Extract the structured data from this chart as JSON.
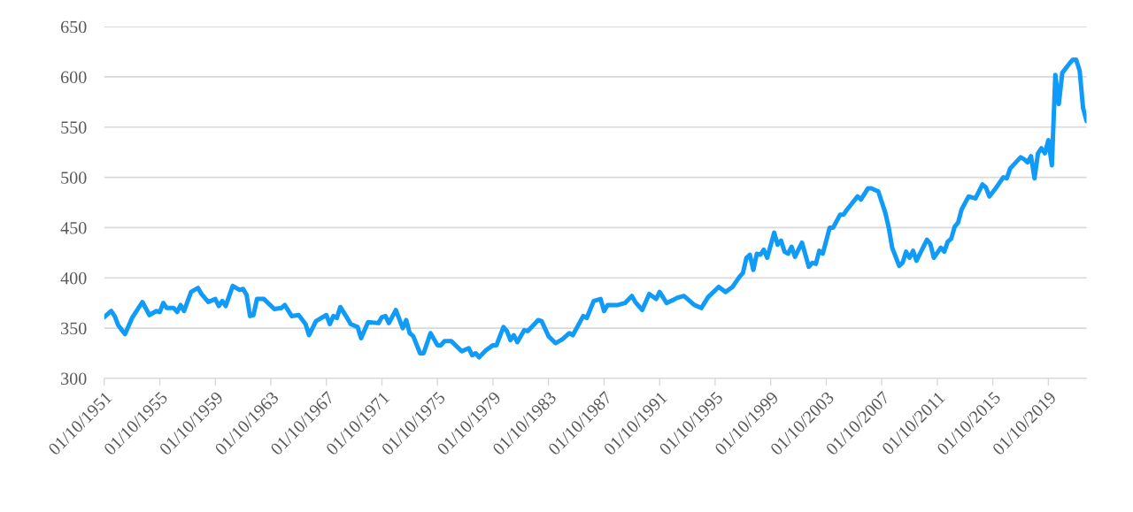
{
  "chart_data": {
    "type": "line",
    "x": [
      "1951-10",
      "1952-04",
      "1952-07",
      "1952-10",
      "1953-04",
      "1953-10",
      "1954-07",
      "1955-01",
      "1955-07",
      "1955-10",
      "1956-01",
      "1956-04",
      "1956-10",
      "1957-01",
      "1957-04",
      "1957-07",
      "1958-01",
      "1958-07",
      "1958-10",
      "1959-04",
      "1959-10",
      "1960-01",
      "1960-04",
      "1960-07",
      "1961-01",
      "1961-07",
      "1961-10",
      "1962-01",
      "1962-04",
      "1962-07",
      "1962-10",
      "1963-04",
      "1964-01",
      "1964-07",
      "1964-10",
      "1965-04",
      "1965-10",
      "1966-04",
      "1966-07",
      "1967-01",
      "1967-10",
      "1968-01",
      "1968-04",
      "1968-07",
      "1968-10",
      "1969-04",
      "1969-07",
      "1970-01",
      "1970-04",
      "1970-10",
      "1971-07",
      "1971-10",
      "1972-01",
      "1972-04",
      "1972-10",
      "1973-04",
      "1973-07",
      "1973-10",
      "1974-01",
      "1974-07",
      "1974-10",
      "1975-04",
      "1975-10",
      "1976-01",
      "1976-04",
      "1976-10",
      "1977-07",
      "1978-01",
      "1978-04",
      "1978-07",
      "1978-10",
      "1979-04",
      "1979-10",
      "1980-01",
      "1980-07",
      "1980-10",
      "1981-01",
      "1981-04",
      "1981-07",
      "1982-01",
      "1982-04",
      "1983-01",
      "1983-04",
      "1983-10",
      "1984-04",
      "1984-10",
      "1985-04",
      "1985-07",
      "1986-04",
      "1986-07",
      "1987-01",
      "1987-07",
      "1987-10",
      "1988-01",
      "1988-10",
      "1989-04",
      "1989-10",
      "1990-01",
      "1990-07",
      "1991-01",
      "1991-07",
      "1991-10",
      "1992-04",
      "1993-01",
      "1993-07",
      "1994-04",
      "1994-10",
      "1995-04",
      "1996-01",
      "1996-07",
      "1997-01",
      "1997-07",
      "1997-10",
      "1998-01",
      "1998-04",
      "1998-07",
      "1998-10",
      "1999-01",
      "1999-04",
      "1999-07",
      "2000-01",
      "2000-04",
      "2000-07",
      "2000-10",
      "2001-01",
      "2001-04",
      "2001-07",
      "2002-01",
      "2002-07",
      "2002-10",
      "2003-01",
      "2003-04",
      "2003-07",
      "2004-01",
      "2004-04",
      "2004-10",
      "2005-01",
      "2005-04",
      "2006-01",
      "2006-04",
      "2006-10",
      "2007-01",
      "2007-07",
      "2008-01",
      "2008-04",
      "2008-07",
      "2009-01",
      "2009-04",
      "2009-07",
      "2009-10",
      "2010-01",
      "2010-04",
      "2011-01",
      "2011-04",
      "2011-07",
      "2012-01",
      "2012-04",
      "2012-07",
      "2012-10",
      "2013-01",
      "2013-04",
      "2013-07",
      "2014-01",
      "2014-07",
      "2015-01",
      "2015-04",
      "2015-07",
      "2016-01",
      "2016-07",
      "2016-10",
      "2017-01",
      "2017-10",
      "2018-01",
      "2018-04",
      "2018-07",
      "2018-10",
      "2019-01",
      "2019-04",
      "2019-07",
      "2019-10",
      "2020-01",
      "2020-04",
      "2020-07",
      "2020-10",
      "2021-04",
      "2021-07",
      "2021-10",
      "2022-01",
      "2022-04",
      "2022-07"
    ],
    "values": [
      361,
      367,
      362,
      353,
      344,
      360,
      376,
      363,
      367,
      366,
      375,
      370,
      370,
      366,
      373,
      367,
      386,
      390,
      384,
      376,
      379,
      372,
      377,
      372,
      392,
      388,
      389,
      383,
      362,
      363,
      379,
      379,
      369,
      370,
      373,
      362,
      363,
      354,
      343,
      357,
      363,
      354,
      362,
      360,
      371,
      360,
      354,
      351,
      340,
      356,
      355,
      361,
      362,
      355,
      368,
      350,
      358,
      345,
      342,
      325,
      325,
      345,
      333,
      333,
      337,
      337,
      327,
      330,
      323,
      325,
      321,
      328,
      333,
      333,
      351,
      347,
      338,
      343,
      336,
      348,
      347,
      358,
      357,
      342,
      335,
      339,
      345,
      343,
      362,
      360,
      377,
      379,
      367,
      373,
      373,
      375,
      382,
      376,
      368,
      384,
      379,
      386,
      375,
      380,
      382,
      373,
      370,
      381,
      391,
      386,
      391,
      401,
      405,
      420,
      423,
      408,
      424,
      423,
      428,
      420,
      445,
      433,
      437,
      426,
      424,
      431,
      421,
      435,
      411,
      415,
      414,
      427,
      424,
      450,
      450,
      463,
      463,
      468,
      481,
      478,
      489,
      489,
      486,
      465,
      450,
      430,
      412,
      415,
      426,
      420,
      427,
      417,
      438,
      434,
      420,
      430,
      426,
      436,
      439,
      451,
      455,
      468,
      481,
      479,
      493,
      490,
      481,
      490,
      500,
      499,
      509,
      520,
      518,
      515,
      521,
      499,
      524,
      529,
      524,
      537,
      512,
      602,
      573,
      604,
      613,
      617,
      617,
      606,
      569,
      556
    ],
    "color": "#0f9bf7",
    "xlim": [
      "1951-10-01",
      "2022-07-01"
    ],
    "xticks": [
      {
        "value": "1951-10-01",
        "label": "01/10/1951"
      },
      {
        "value": "1955-10-01",
        "label": "01/10/1955"
      },
      {
        "value": "1959-10-01",
        "label": "01/10/1959"
      },
      {
        "value": "1963-10-01",
        "label": "01/10/1963"
      },
      {
        "value": "1967-10-01",
        "label": "01/10/1967"
      },
      {
        "value": "1971-10-01",
        "label": "01/10/1971"
      },
      {
        "value": "1975-10-01",
        "label": "01/10/1975"
      },
      {
        "value": "1979-10-01",
        "label": "01/10/1979"
      },
      {
        "value": "1983-10-01",
        "label": "01/10/1983"
      },
      {
        "value": "1987-10-01",
        "label": "01/10/1987"
      },
      {
        "value": "1991-10-01",
        "label": "01/10/1991"
      },
      {
        "value": "1995-10-01",
        "label": "01/10/1995"
      },
      {
        "value": "1999-10-01",
        "label": "01/10/1999"
      },
      {
        "value": "2003-10-01",
        "label": "01/10/2003"
      },
      {
        "value": "2007-10-01",
        "label": "01/10/2007"
      },
      {
        "value": "2011-10-01",
        "label": "01/10/2011"
      },
      {
        "value": "2015-10-01",
        "label": "01/10/2015"
      },
      {
        "value": "2019-10-01",
        "label": "01/10/2019"
      }
    ],
    "ylim": [
      300,
      650
    ],
    "yticks": [
      300,
      350,
      400,
      450,
      500,
      550,
      600,
      650
    ],
    "grid": "y"
  }
}
